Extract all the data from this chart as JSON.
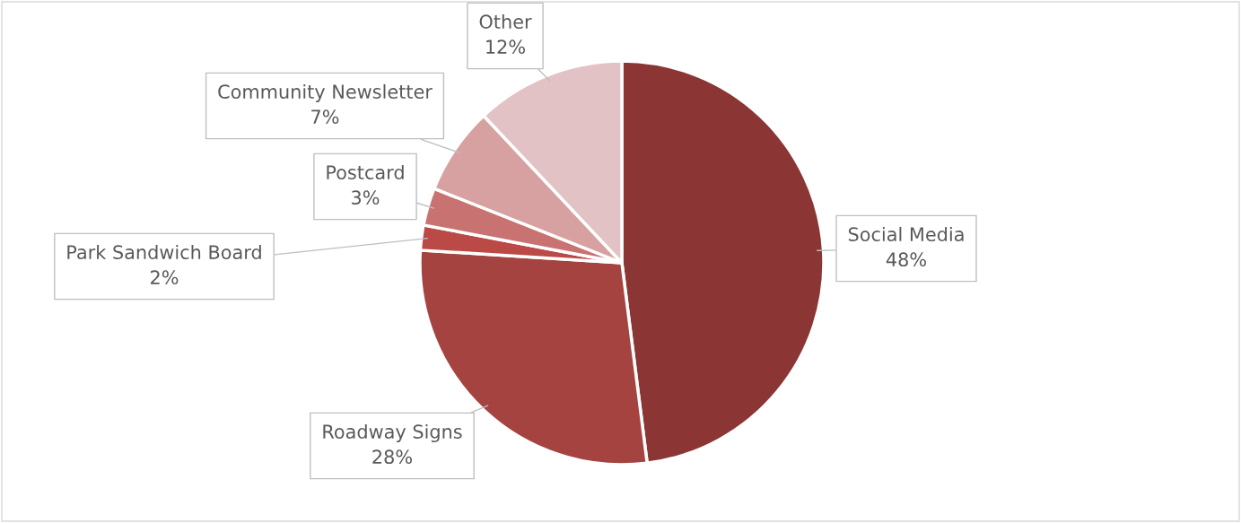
{
  "chart_data": {
    "type": "pie",
    "categories": [
      "Social Media",
      "Roadway Signs",
      "Park Sandwich Board",
      "Postcard",
      "Community Newsletter",
      "Other"
    ],
    "values": [
      48,
      28,
      2,
      3,
      7,
      12
    ],
    "value_labels": [
      "48%",
      "28%",
      "2%",
      "3%",
      "7%",
      "12%"
    ],
    "colors": [
      "#8b3535",
      "#a54341",
      "#bb4a47",
      "#c87371",
      "#d8a1a1",
      "#e2c2c4"
    ],
    "legend": false
  }
}
